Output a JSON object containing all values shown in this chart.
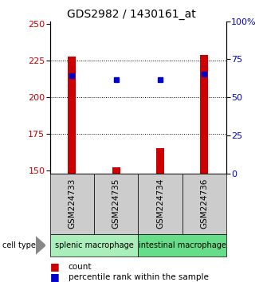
{
  "title": "GDS2982 / 1430161_at",
  "samples": [
    "GSM224733",
    "GSM224735",
    "GSM224734",
    "GSM224736"
  ],
  "count_values": [
    228,
    152,
    165,
    229
  ],
  "percentile_values": [
    215,
    212,
    212,
    216
  ],
  "groups": [
    {
      "label": "splenic macrophage",
      "samples": [
        0,
        1
      ],
      "color": "#aaeebb"
    },
    {
      "label": "intestinal macrophage",
      "samples": [
        2,
        3
      ],
      "color": "#66dd88"
    }
  ],
  "ylim": [
    148,
    252
  ],
  "yticks_left": [
    150,
    175,
    200,
    225,
    250
  ],
  "yticks_right": [
    0,
    25,
    50,
    75,
    100
  ],
  "bar_color": "#cc0000",
  "point_color": "#0000cc",
  "background_color": "#ffffff",
  "sample_box_color": "#cccccc",
  "legend_count_color": "#cc0000",
  "legend_pct_color": "#0000cc",
  "bar_width": 0.18
}
